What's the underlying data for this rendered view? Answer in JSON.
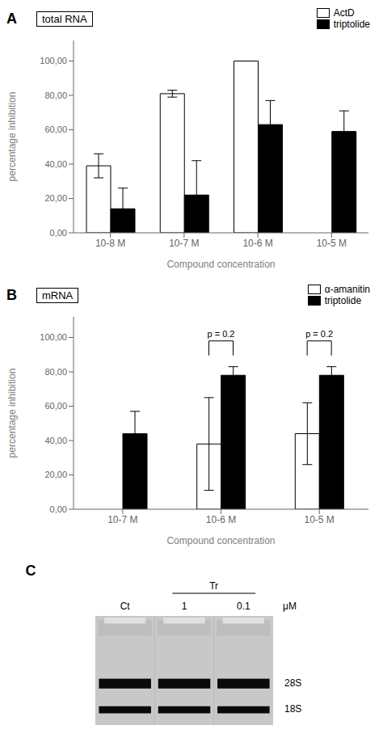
{
  "chart_data": [
    {
      "type": "bar",
      "panel_label": "A",
      "title": "total RNA",
      "xlabel": "Compound concentration",
      "ylabel": "percentage inhibition",
      "categories": [
        "10-8 M",
        "10-7 M",
        "10-6 M",
        "10-5 M"
      ],
      "series": [
        {
          "name": "ActD",
          "color": "#ffffff",
          "values": [
            39,
            81,
            100,
            0
          ],
          "errors": [
            7,
            2,
            0,
            0
          ]
        },
        {
          "name": "triptolide",
          "color": "#000000",
          "values": [
            14,
            22,
            63,
            59
          ],
          "errors": [
            12,
            20,
            14,
            12
          ]
        }
      ],
      "ylim": [
        0,
        112
      ],
      "yticks": [
        {
          "value": 0,
          "label": "0,00"
        },
        {
          "value": 20,
          "label": "20,00"
        },
        {
          "value": 40,
          "label": "40,00"
        },
        {
          "value": 60,
          "label": "60,00"
        },
        {
          "value": 80,
          "label": "80,00"
        },
        {
          "value": 100,
          "label": "100,00"
        }
      ],
      "grid": false,
      "legend": "upper right"
    },
    {
      "type": "bar",
      "panel_label": "B",
      "title": "mRNA",
      "xlabel": "Compound concentration",
      "ylabel": "percentage inhibition",
      "categories": [
        "10-7 M",
        "10-6 M",
        "10-5 M"
      ],
      "series": [
        {
          "name": "α-amanitin",
          "color": "#ffffff",
          "values": [
            0,
            38,
            44
          ],
          "errors": [
            0,
            27,
            18
          ]
        },
        {
          "name": "triptolide",
          "color": "#000000",
          "values": [
            44,
            78,
            78
          ],
          "errors": [
            13,
            5,
            5
          ]
        }
      ],
      "ylim": [
        0,
        112
      ],
      "yticks": [
        {
          "value": 0,
          "label": "0,00"
        },
        {
          "value": 20,
          "label": "20,00"
        },
        {
          "value": 40,
          "label": "40,00"
        },
        {
          "value": 60,
          "label": "60,00"
        },
        {
          "value": 80,
          "label": "80,00"
        },
        {
          "value": 100,
          "label": "100,00"
        }
      ],
      "annotations": [
        {
          "text": "p = 0.2",
          "category": "10-6 M",
          "y": 98
        },
        {
          "text": "p = 0.2",
          "category": "10-5 M",
          "y": 98
        }
      ],
      "grid": false,
      "legend": "upper right"
    },
    {
      "type": "gel",
      "panel_label": "C",
      "categories": [
        "Ct",
        "1",
        "0.1"
      ],
      "xlabel": "μM",
      "group_label": "Tr",
      "band_labels": [
        "28S",
        "18S"
      ]
    }
  ]
}
